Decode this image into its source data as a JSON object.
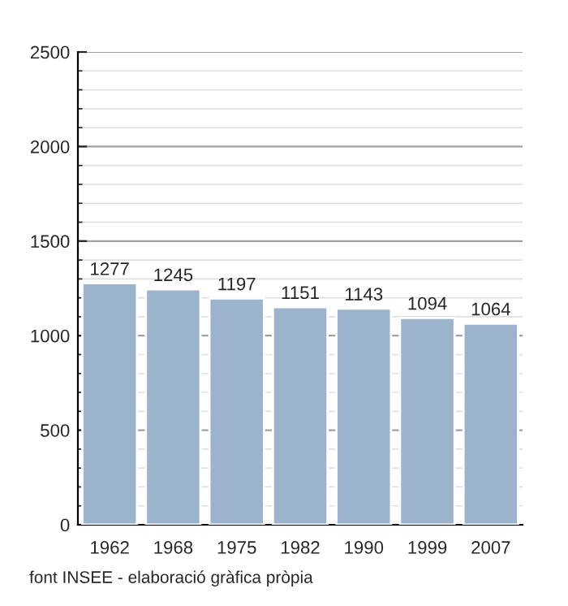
{
  "chart_data": {
    "type": "bar",
    "categories": [
      "1962",
      "1968",
      "1975",
      "1982",
      "1990",
      "1999",
      "2007"
    ],
    "values": [
      1277,
      1245,
      1197,
      1151,
      1143,
      1094,
      1064
    ],
    "color": "#9bb3cc",
    "ylim": [
      0,
      2500
    ],
    "yticks": [
      0,
      500,
      1000,
      1500,
      2000,
      2500
    ],
    "grid": "y",
    "data_labels": true,
    "annotations": [
      "font INSEE - elaboració gràfica pròpia"
    ]
  }
}
